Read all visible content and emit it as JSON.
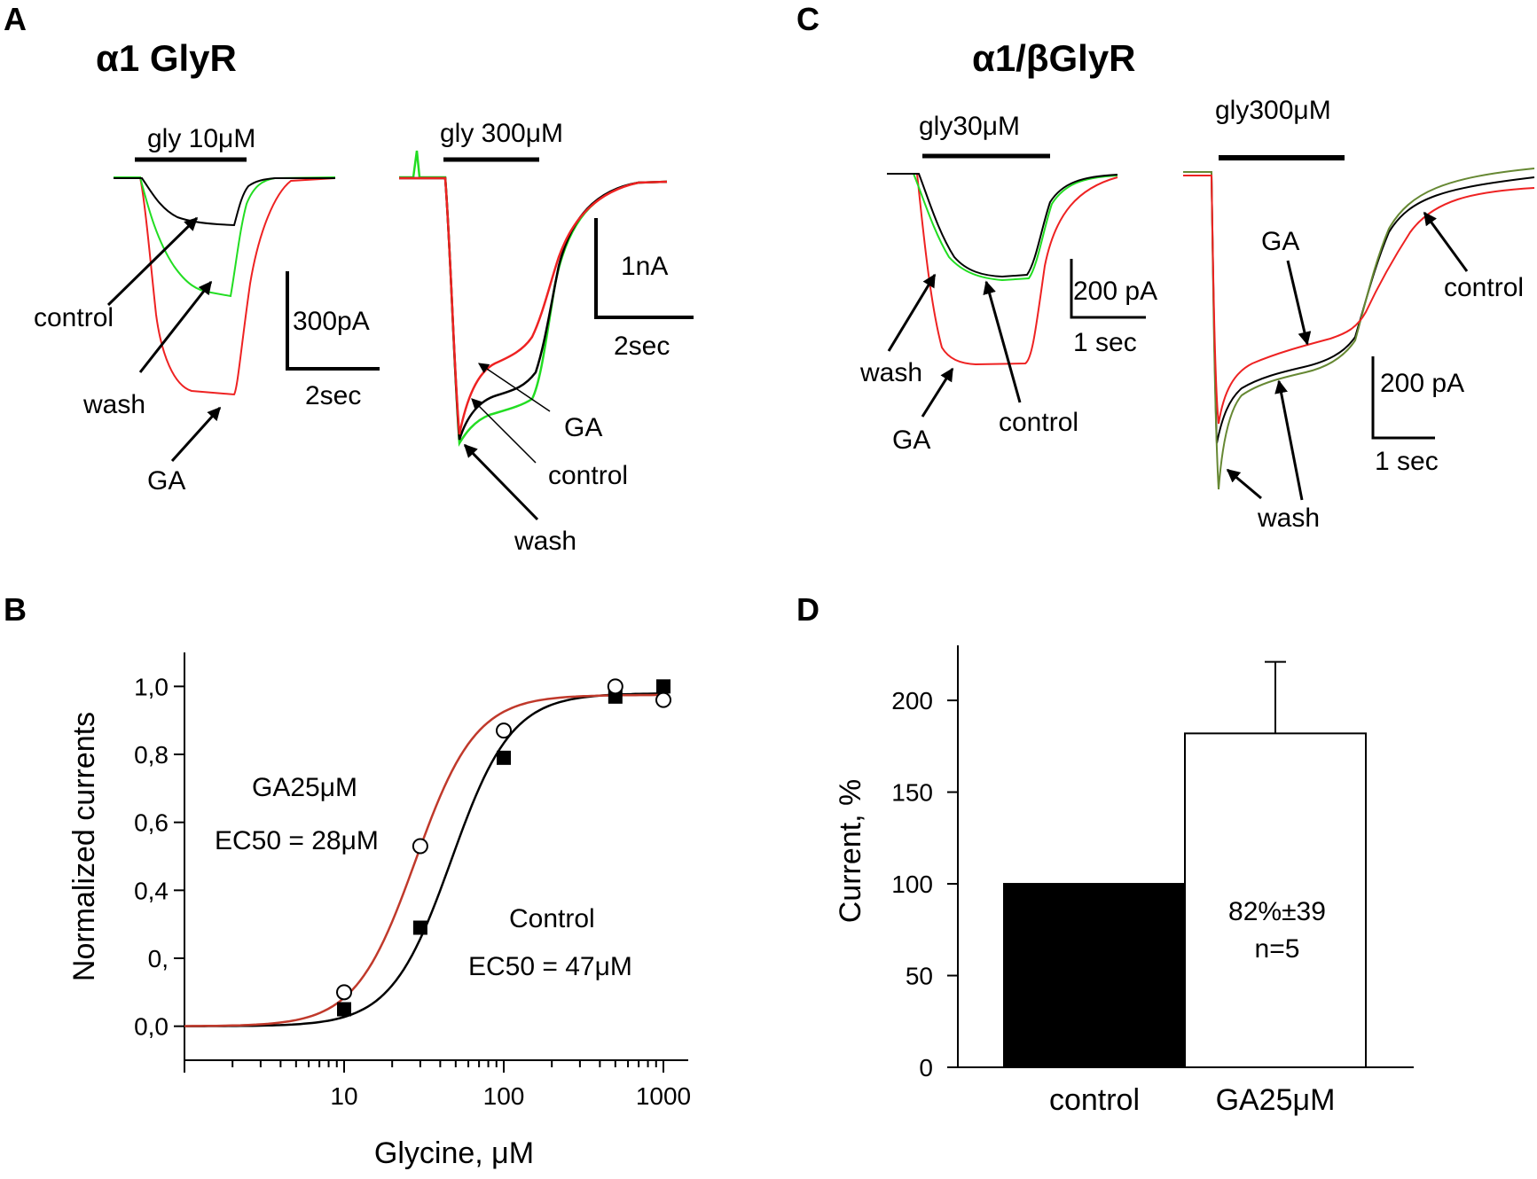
{
  "panels": {
    "a": {
      "letter": "A",
      "title": "α1 GlyR",
      "left": {
        "agonist": "gly 10μM",
        "scale_current": "300pA",
        "scale_time": "2sec",
        "labels": {
          "control": "control",
          "wash": "wash",
          "ga": "GA"
        }
      },
      "right": {
        "agonist": "gly 300μM",
        "scale_current": "1nA",
        "scale_time": "2sec",
        "labels": {
          "ga": "GA",
          "control": "control",
          "wash": "wash"
        }
      }
    },
    "b": {
      "letter": "B"
    },
    "c": {
      "letter": "C",
      "title": "α1/βGlyR",
      "left": {
        "agonist": "gly30μM",
        "scale_current": "200 pA",
        "scale_time": "1 sec",
        "labels": {
          "wash": "wash",
          "ga": "GA",
          "control": "control"
        }
      },
      "right": {
        "agonist": "gly300μM",
        "scale_current": "200 pA",
        "scale_time": "1 sec",
        "labels": {
          "ga": "GA",
          "control": "control",
          "wash": "wash"
        }
      }
    },
    "d": {
      "letter": "D"
    }
  },
  "colors": {
    "control": "#000000",
    "wash": "#22dd22",
    "wash_dark": "#668833",
    "ga": "#ee2222",
    "ga_fit": "#c0392b"
  },
  "chart_data": [
    {
      "type": "scatter",
      "xscale": "log",
      "xlabel": "Glycine, μM",
      "ylabel": "Normalized currents",
      "xlim": [
        1,
        1000
      ],
      "ylim": [
        -0.1,
        1.1
      ],
      "xticks": [
        10,
        100,
        1000
      ],
      "xtick_labels": [
        "10",
        "100",
        "1000"
      ],
      "yticks": [
        0.0,
        0.2,
        0.4,
        0.6,
        0.8,
        1.0
      ],
      "ytick_labels": [
        "0,0",
        "0,",
        "0,4",
        "0,6",
        "0,8",
        "1,0"
      ],
      "series": [
        {
          "name": "Control",
          "marker": "filled-square",
          "x": [
            10,
            30,
            100,
            500,
            1000
          ],
          "y": [
            0.05,
            0.29,
            0.79,
            0.97,
            1.0
          ]
        },
        {
          "name": "GA25μM",
          "marker": "open-circle",
          "x": [
            10,
            30,
            100,
            500,
            1000
          ],
          "y": [
            0.1,
            0.53,
            0.87,
            1.0,
            0.96
          ]
        }
      ],
      "fits": [
        {
          "series": "Control",
          "ec50": 47,
          "hill": 2.3,
          "max": 0.98
        },
        {
          "series": "GA25μM",
          "ec50": 28,
          "hill": 2.3,
          "max": 0.975
        }
      ],
      "annotations": {
        "ga_name": "GA25μM",
        "ga_ec50": "EC50 = 28μM",
        "control_name": "Control",
        "control_ec50": "EC50 = 47μM"
      }
    },
    {
      "type": "bar",
      "ylabel": "Current, %",
      "ylim": [
        0,
        230
      ],
      "yticks": [
        0,
        50,
        100,
        150,
        200
      ],
      "categories": [
        "control",
        "GA25μM"
      ],
      "values": [
        100,
        182
      ],
      "errors": [
        0,
        39
      ],
      "bar_colors": [
        "#000000",
        "#ffffff"
      ],
      "annotation": [
        "82%±39",
        "n=5"
      ]
    }
  ]
}
